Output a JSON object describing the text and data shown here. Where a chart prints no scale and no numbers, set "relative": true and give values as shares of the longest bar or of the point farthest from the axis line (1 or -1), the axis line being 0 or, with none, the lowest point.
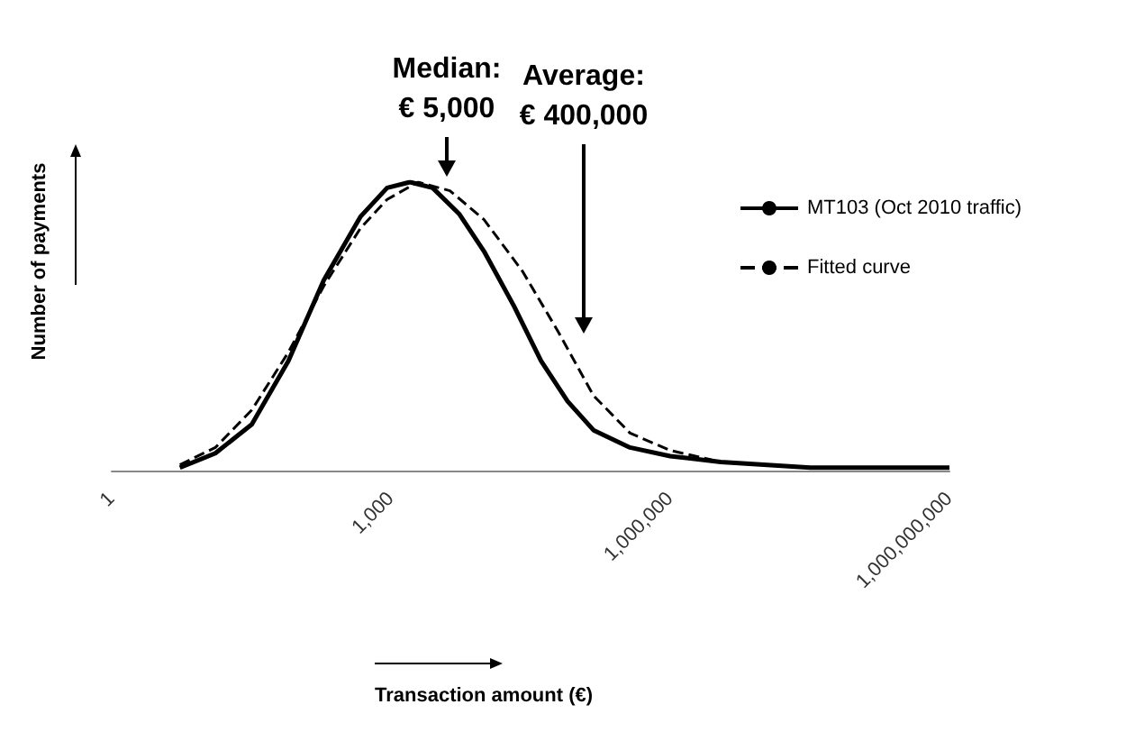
{
  "chart_data": {
    "type": "line",
    "relative": true,
    "xlabel": "Transaction amount (€)",
    "ylabel": "Number of payments",
    "log": "x",
    "xlim": [
      1,
      1000000000
    ],
    "xticks": [
      {
        "value": 1,
        "label": "1"
      },
      {
        "value": 1000,
        "label": "1,000"
      },
      {
        "value": 1000000,
        "label": "1,000,000"
      },
      {
        "value": 1000000000,
        "label": "1,000,000,000"
      }
    ],
    "legend": "right",
    "marker": "none",
    "grid": false,
    "x": [
      5.4,
      13,
      32,
      79,
      190,
      470,
      910,
      1600,
      2800,
      5400,
      10000,
      21000,
      41000,
      79000,
      150000,
      370000,
      1000000,
      3500000,
      32000000,
      1000000000
    ],
    "series": [
      {
        "name": "MT103 (Oct 2010 traffic)",
        "color": "#000000",
        "line_style": "solid",
        "values": [
          0.01,
          0.06,
          0.16,
          0.38,
          0.66,
          0.88,
          0.98,
          1,
          0.98,
          0.89,
          0.76,
          0.57,
          0.38,
          0.24,
          0.14,
          0.08,
          0.05,
          0.03,
          0.01,
          0.01
        ]
      },
      {
        "name": "Fitted curve",
        "color": "#000000",
        "line_style": "dashed",
        "x": [
          5.4,
          13,
          32,
          79,
          190,
          470,
          910,
          1950,
          4300,
          10000,
          26000,
          63000,
          150000,
          370000,
          1000000,
          3500000,
          32000000,
          1000000000
        ],
        "values": [
          0.02,
          0.08,
          0.21,
          0.41,
          0.64,
          0.84,
          0.94,
          1,
          0.97,
          0.87,
          0.69,
          0.48,
          0.26,
          0.13,
          0.07,
          0.03,
          0.01,
          0.01
        ]
      }
    ],
    "annotations": [
      "Median:\n€ 5,000",
      "Average:\n€ 400,000"
    ]
  }
}
